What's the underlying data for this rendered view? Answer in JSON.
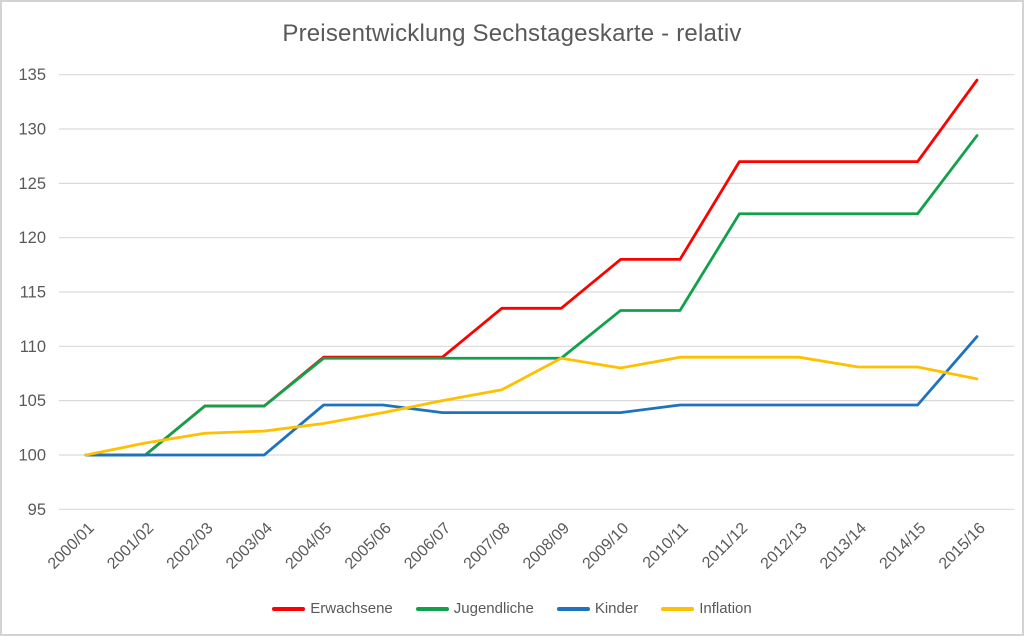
{
  "title": "Preisentwicklung Sechstageskarte - relativ",
  "colors": {
    "text": "#595959",
    "gridline": "#d9d9d9",
    "frame_border": "#d3d3d3",
    "background": "#ffffff"
  },
  "chart_data": {
    "type": "line",
    "title": "Preisentwicklung Sechstageskarte - relativ",
    "categories": [
      "2000/01",
      "2001/02",
      "2002/03",
      "2003/04",
      "2004/05",
      "2005/06",
      "2006/07",
      "2007/08",
      "2008/09",
      "2009/10",
      "2010/11",
      "2011/12",
      "2012/13",
      "2013/14",
      "2014/15",
      "2015/16"
    ],
    "series": [
      {
        "name": "Erwachsene",
        "color": "#ff0000",
        "values": [
          100,
          100,
          104.5,
          104.5,
          109,
          109,
          109,
          113.5,
          113.5,
          118,
          118,
          127,
          127,
          127,
          127,
          134.5
        ]
      },
      {
        "name": "Jugendliche",
        "color": "#12a14b",
        "values": [
          100,
          100,
          104.5,
          104.5,
          108.9,
          108.9,
          108.9,
          108.9,
          108.9,
          113.3,
          113.3,
          122.2,
          122.2,
          122.2,
          122.2,
          129.4
        ]
      },
      {
        "name": "Kinder",
        "color": "#1f72bf",
        "values": [
          100,
          100,
          100,
          100,
          104.6,
          104.6,
          103.9,
          103.9,
          103.9,
          103.9,
          104.6,
          104.6,
          104.6,
          104.6,
          104.6,
          110.9
        ]
      },
      {
        "name": "Inflation",
        "color": "#ffc000",
        "values": [
          100,
          101.1,
          102,
          102.2,
          102.9,
          103.9,
          105,
          106,
          108.9,
          108,
          109,
          109,
          109,
          108.1,
          108.1,
          107
        ]
      }
    ],
    "xlabel": "",
    "ylabel": "",
    "ylim": [
      95,
      135
    ],
    "y_ticks": [
      95,
      100,
      105,
      110,
      115,
      120,
      125,
      130,
      135
    ],
    "grid": true,
    "legend_position": "bottom",
    "x_label_rotation_deg": 45
  }
}
